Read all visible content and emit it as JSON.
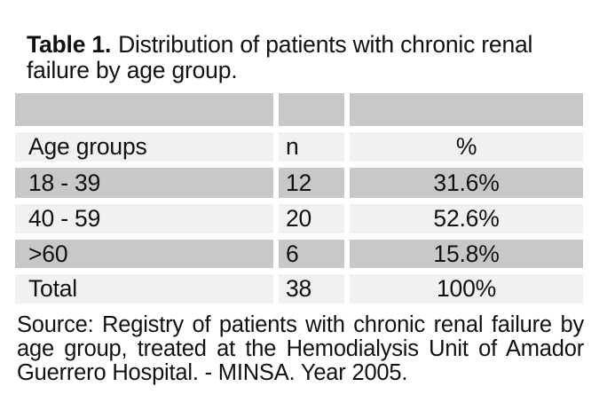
{
  "title": {
    "label": "Table 1.",
    "line1_rest": "Distribution of patients with chronic renal",
    "line2": "failure by age group."
  },
  "table": {
    "header": {
      "age": "Age groups",
      "n": "n",
      "pct": "%"
    },
    "rows": [
      {
        "age": "18 - 39",
        "n": "12",
        "pct": "31.6%"
      },
      {
        "age": "40 - 59",
        "n": "20",
        "pct": "52.6%"
      },
      {
        "age": ">60",
        "n": "6",
        "pct": "15.8%"
      },
      {
        "age": "Total",
        "n": "38",
        "pct": "100%"
      }
    ]
  },
  "source": {
    "lines": [
      "Source: Registry of patients with chronic renal failure by",
      "age group, treated at the Hemodialysis Unit of Amador",
      "Guerrero Hospital. - MINSA. Year 2005."
    ]
  },
  "colors": {
    "row_gray": "#c8c8c8",
    "row_light": "#f1f1f1",
    "background": "#ffffff",
    "text": "#111111"
  },
  "chart_data": {
    "type": "table",
    "title": "Table 1. Distribution of patients with chronic renal failure by age group.",
    "columns": [
      "Age groups",
      "n",
      "%"
    ],
    "rows": [
      [
        "18 - 39",
        12,
        "31.6%"
      ],
      [
        "40 - 59",
        20,
        "52.6%"
      ],
      [
        ">60",
        6,
        "15.8%"
      ],
      [
        "Total",
        38,
        "100%"
      ]
    ],
    "total_n": 38,
    "source": "Source: Registry of patients with chronic renal failure by age group, treated at the Hemodialysis Unit of Amador Guerrero Hospital. - MINSA. Year 2005."
  }
}
